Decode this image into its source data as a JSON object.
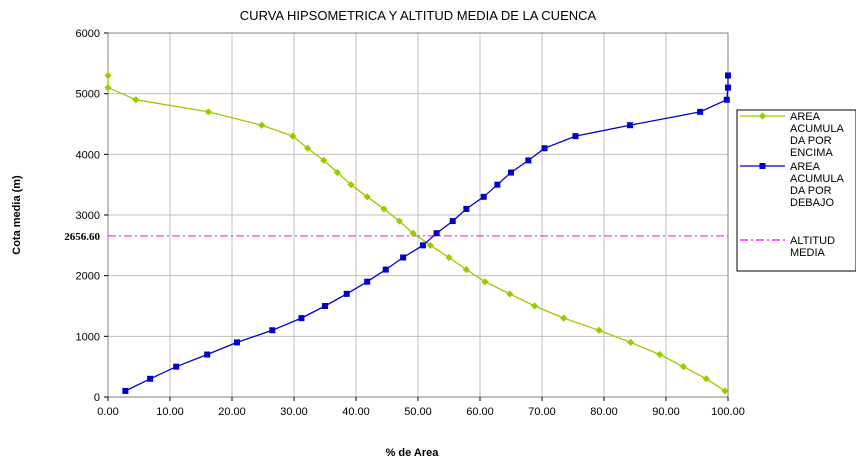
{
  "chart_data": {
    "type": "line",
    "title": "CURVA HIPSOMETRICA Y ALTITUD MEDIA DE LA CUENCA",
    "xlabel": "% de Area",
    "ylabel": "Cota media (m)",
    "xlim": [
      0,
      100
    ],
    "ylim": [
      0,
      6000
    ],
    "x_ticks": [
      "0.00",
      "10.00",
      "20.00",
      "30.00",
      "40.00",
      "50.00",
      "60.00",
      "70.00",
      "80.00",
      "90.00",
      "100.00"
    ],
    "y_ticks": [
      "0",
      "1000",
      "2000",
      "3000",
      "4000",
      "5000",
      "6000"
    ],
    "grid": true,
    "legend_position": "right",
    "series": [
      {
        "name": "AREA ACUMULADA POR ENCIMA",
        "name_lines": [
          "AREA",
          "ACUMULA",
          "DA POR",
          "ENCIMA"
        ],
        "color": "#99cc00",
        "marker": "diamond",
        "points": [
          [
            0.0,
            5300
          ],
          [
            0.0,
            5100
          ],
          [
            4.5,
            4900
          ],
          [
            16.2,
            4700
          ],
          [
            24.8,
            4480
          ],
          [
            29.8,
            4300
          ],
          [
            32.2,
            4100
          ],
          [
            34.8,
            3900
          ],
          [
            37.0,
            3700
          ],
          [
            39.2,
            3500
          ],
          [
            41.8,
            3300
          ],
          [
            44.5,
            3100
          ],
          [
            47.0,
            2900
          ],
          [
            49.2,
            2700
          ],
          [
            52.0,
            2500
          ],
          [
            55.0,
            2300
          ],
          [
            57.8,
            2100
          ],
          [
            60.8,
            1900
          ],
          [
            64.8,
            1700
          ],
          [
            68.8,
            1500
          ],
          [
            73.5,
            1300
          ],
          [
            79.2,
            1100
          ],
          [
            84.3,
            900
          ],
          [
            89.0,
            700
          ],
          [
            92.8,
            500
          ],
          [
            96.5,
            300
          ],
          [
            99.5,
            100
          ]
        ]
      },
      {
        "name": "AREA ACUMULADA POR DEBAJO",
        "name_lines": [
          "AREA",
          "ACUMULA",
          "DA POR",
          "DEBAJO"
        ],
        "color": "#0000cc",
        "marker": "square",
        "points": [
          [
            2.8,
            100
          ],
          [
            6.8,
            300
          ],
          [
            11.0,
            500
          ],
          [
            16.0,
            700
          ],
          [
            20.8,
            900
          ],
          [
            26.5,
            1100
          ],
          [
            31.2,
            1300
          ],
          [
            35.0,
            1500
          ],
          [
            38.5,
            1700
          ],
          [
            41.8,
            1900
          ],
          [
            44.8,
            2100
          ],
          [
            47.6,
            2300
          ],
          [
            50.8,
            2500
          ],
          [
            53.0,
            2700
          ],
          [
            55.6,
            2900
          ],
          [
            57.8,
            3100
          ],
          [
            60.6,
            3300
          ],
          [
            62.8,
            3500
          ],
          [
            65.0,
            3700
          ],
          [
            67.8,
            3900
          ],
          [
            70.4,
            4100
          ],
          [
            75.4,
            4300
          ],
          [
            84.2,
            4480
          ],
          [
            95.5,
            4700
          ],
          [
            99.8,
            4900
          ],
          [
            100.0,
            5100
          ],
          [
            100.0,
            5300
          ]
        ]
      },
      {
        "name": "ALTITUD MEDIA",
        "name_lines": [
          "ALTITUD",
          "MEDIA"
        ],
        "color": "#ff00ff",
        "style": "dash-dot",
        "value": 2656.6,
        "label": "2656.60"
      }
    ]
  }
}
